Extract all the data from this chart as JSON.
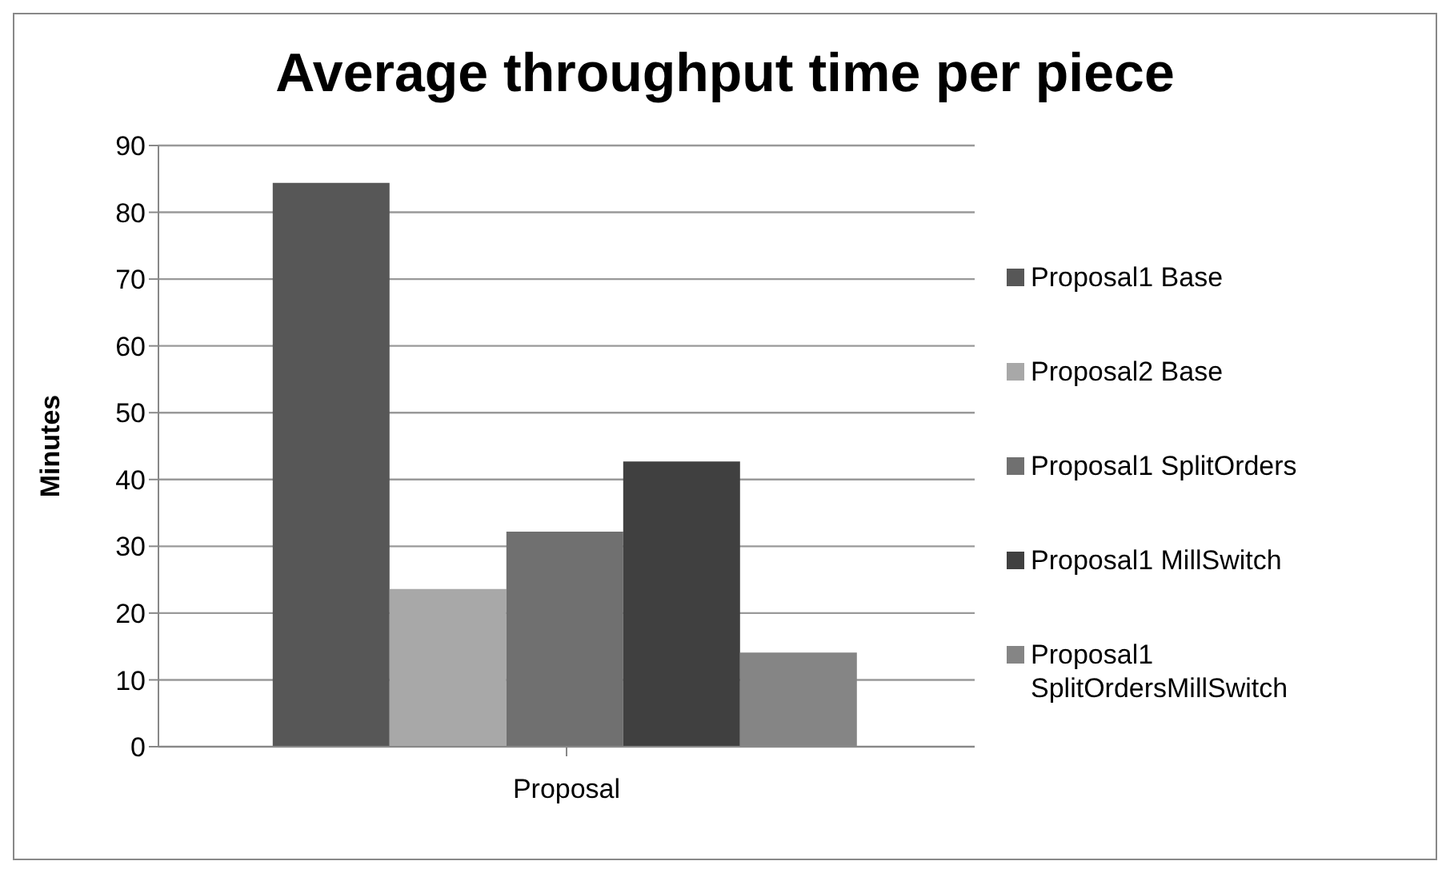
{
  "chart_data": {
    "type": "bar",
    "title": "Average throughput time per piece",
    "ylabel": "Minutes",
    "categories": [
      "Proposal"
    ],
    "series": [
      {
        "name": "Proposal1 Base",
        "color": "#575757",
        "values": [
          84.4
        ]
      },
      {
        "name": "Proposal2 Base",
        "color": "#a8a8a8",
        "values": [
          23.6
        ]
      },
      {
        "name": "Proposal1 SplitOrders",
        "color": "#707070",
        "values": [
          32.2
        ]
      },
      {
        "name": "Proposal1 MillSwitch",
        "color": "#404040",
        "values": [
          42.7
        ]
      },
      {
        "name": "Proposal1 SplitOrdersMillSwitch",
        "color": "#858585",
        "values": [
          14.1
        ]
      }
    ],
    "ylim": [
      0,
      90
    ],
    "yticks": [
      0,
      10,
      20,
      30,
      40,
      50,
      60,
      70,
      80,
      90
    ],
    "grid": "y",
    "legend": "right"
  }
}
